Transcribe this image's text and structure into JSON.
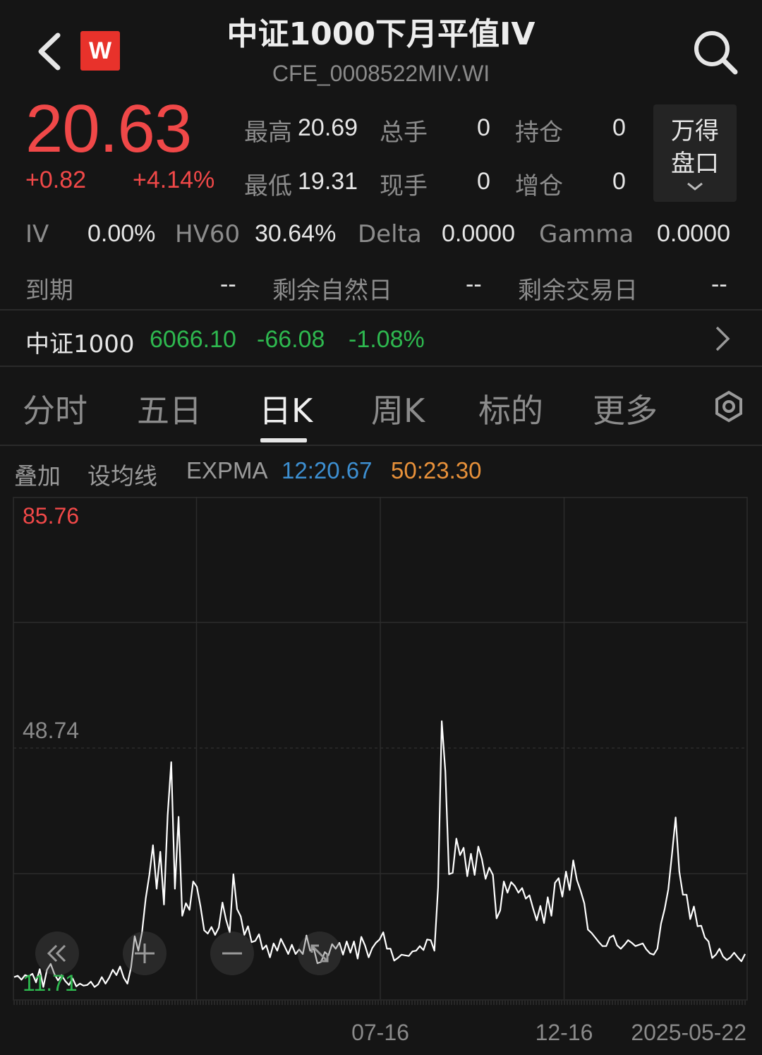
{
  "header": {
    "title": "中证1000下月平值IV",
    "code": "CFE_0008522MIV.WI",
    "logo_text": "W"
  },
  "quote": {
    "price": "20.63",
    "change": "+0.82",
    "change_pct": "+4.14%",
    "high_label": "最高",
    "high": "20.69",
    "low_label": "最低",
    "low": "19.31",
    "total_vol_label": "总手",
    "total_vol": "0",
    "cur_vol_label": "现手",
    "cur_vol": "0",
    "oi_label": "持仓",
    "oi": "0",
    "oi_add_label": "增仓",
    "oi_add": "0",
    "panel_line1": "万得",
    "panel_line2": "盘口"
  },
  "greeks": {
    "iv_label": "IV",
    "iv": "0.00%",
    "hv_label": "HV60",
    "hv": "30.64%",
    "delta_label": "Delta",
    "delta": "0.0000",
    "gamma_label": "Gamma",
    "gamma": "0.0000"
  },
  "expiry": {
    "expiry_label": "到期",
    "expiry": "--",
    "nat_days_label": "剩余自然日",
    "nat_days": "--",
    "trade_days_label": "剩余交易日",
    "trade_days": "--"
  },
  "index": {
    "name": "中证1000",
    "value": "6066.10",
    "change": "-66.08",
    "change_pct": "-1.08%"
  },
  "tabs": [
    "分时",
    "五日",
    "日K",
    "周K",
    "标的",
    "更多"
  ],
  "active_tab": "日K",
  "indicators": {
    "overlay": "叠加",
    "set_ma": "设均线",
    "expma_label": "EXPMA",
    "expma12": "12:20.67",
    "expma50": "50:23.30"
  },
  "colors": {
    "up": "#f04848",
    "down": "#2eb84f",
    "expma12": "#3d8fd1",
    "expma50": "#e8913a",
    "line": "#ffffff"
  },
  "chart_data": {
    "type": "line",
    "y_max_label": "85.76",
    "y_mid_label": "48.74",
    "y_min_label": "11.71",
    "ylim": [
      11.71,
      85.76
    ],
    "x_labels": [
      "07-16",
      "12-16",
      "2025-05-22"
    ],
    "series": [
      {
        "values": [
          14.0,
          14.2,
          13.6,
          14.3,
          14.1,
          14.5,
          13.2,
          15.2,
          12.5,
          15.1,
          16.0,
          14.5,
          13.5,
          14.3,
          13.4,
          12.8,
          13.8,
          12.6,
          13.0,
          12.7,
          12.8,
          13.3,
          12.5,
          12.9,
          14.0,
          13.0,
          13.9,
          15.1,
          14.3,
          15.6,
          13.9,
          13.0,
          15.5,
          20.2,
          18.0,
          20.8,
          25.9,
          29.5,
          34.0,
          27.4,
          33.0,
          25.0,
          38.5,
          46.6,
          27.4,
          38.3,
          23.3,
          25.2,
          24.2,
          28.5,
          27.7,
          24.7,
          21.1,
          20.6,
          21.6,
          20.4,
          21.5,
          25.3,
          22.7,
          20.8,
          29.6,
          24.3,
          23.2,
          20.4,
          21.7,
          19.3,
          19.5,
          20.5,
          18.2,
          18.8,
          17.0,
          19.1,
          18.0,
          19.8,
          18.7,
          17.5,
          18.9,
          17.5,
          18.2,
          17.5,
          20.3,
          18.0,
          18.3,
          16.1,
          16.3,
          17.8,
          17.3,
          19.0,
          18.3,
          19.2,
          17.4,
          19.4,
          17.7,
          19.4,
          16.8,
          20.1,
          18.8,
          17.0,
          18.4,
          19.2,
          19.7,
          20.8,
          18.3,
          18.3,
          16.5,
          16.9,
          17.4,
          17.3,
          17.2,
          17.9,
          18.0,
          18.7,
          18.1,
          19.7,
          19.6,
          18.0,
          27.6,
          52.8,
          45.2,
          29.6,
          29.8,
          35.0,
          32.5,
          33.6,
          29.3,
          32.7,
          29.5,
          33.8,
          31.9,
          28.9,
          30.6,
          29.5,
          22.9,
          24.1,
          28.5,
          26.8,
          28.4,
          27.8,
          26.8,
          27.5,
          25.9,
          26.4,
          24.4,
          22.6,
          24.8,
          22.2,
          26.1,
          23.3,
          28.3,
          29.0,
          26.2,
          30.0,
          27.2,
          31.7,
          28.7,
          27.1,
          25.2,
          21.2,
          20.7,
          20.0,
          19.3,
          18.7,
          18.7,
          20.0,
          20.3,
          18.8,
          18.3,
          18.9,
          19.6,
          19.2,
          18.7,
          18.9,
          19.1,
          18.2,
          17.6,
          17.4,
          18.3,
          22.1,
          24.3,
          27.3,
          32.6,
          38.2,
          30.0,
          26.5,
          26.5,
          22.8,
          24.7,
          21.7,
          21.8,
          20.0,
          19.4,
          16.9,
          17.4,
          18.3,
          17.1,
          16.6,
          17.0,
          17.7,
          17.0,
          16.4,
          17.5
        ]
      }
    ],
    "grid": true
  },
  "controls": {
    "rewind": "rewind-icon",
    "zoom_in": "plus-icon",
    "zoom_out": "minus-icon",
    "fullscreen": "expand-icon"
  }
}
